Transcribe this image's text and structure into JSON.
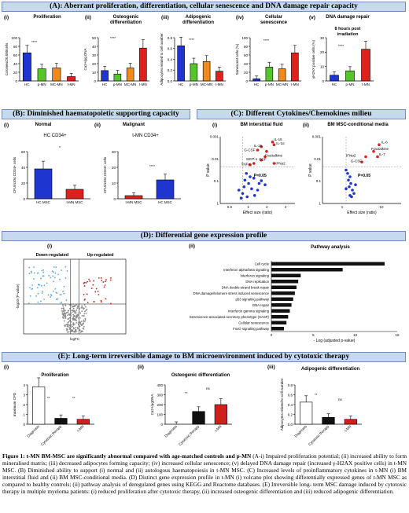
{
  "sections": {
    "A": "(A): Aberrant proliferation, differentiation, cellular senescence and DNA damage repair capacity",
    "B": "(B):  Diminished haematopoietic supporting capacity",
    "C": "(C): Different Cytokines/Chemokines milieu",
    "D": "(D): Differential gene expression profile",
    "E": "(E):  Long-term irreversible damage to BM  microenvironment induced by cytotoxic therapy"
  },
  "panelA": {
    "labels": [
      "(i)",
      "(ii)",
      "(iii)",
      "(iv)",
      "(v)"
    ],
    "titles": [
      "Proliferation",
      "Osteogenic differentiation",
      "Adipogenic differentiation",
      "Cellular senescence",
      "DNA damage repair"
    ],
    "subtitle_v": "8 hours post irradiation",
    "ylabels": [
      "Colonies/20,000cells",
      "Ca2+/μg DNA",
      "Adipocytes related to cell number",
      "Senescent cells (%)",
      "γH2AX positive cells (%)"
    ]
  },
  "panelB": {
    "labels": [
      "(i)",
      "(ii)"
    ],
    "titles": [
      "Normal",
      "Malignant"
    ],
    "legends": [
      "HC CD34+",
      "t-MN CD34+"
    ],
    "ylabel": "CFU/n104 CD34+ cells",
    "xlabels_i": [
      "HC MSC",
      "t-MN MSC"
    ],
    "xlabels_ii": [
      "t-MN MSC",
      "HC MSC"
    ]
  },
  "panelC": {
    "labels": [
      "(i)",
      "(ii)"
    ],
    "titles": [
      "BM interstitial fluid",
      "BM MSC-conditional media"
    ],
    "xlabel": "Effect size (ratio)",
    "ylabel": "P value",
    "pline": "P=0.05",
    "annot_i": [
      "IL-15",
      "IL-1α",
      "IL-15",
      "G-CSF",
      "Fractalkine",
      "MCP-1",
      "EGF",
      "IFNα2",
      "TNFα"
    ],
    "annot_ii": [
      "IL-6",
      "Fractalkine",
      "IFNα2",
      "IL-7",
      "G-CSF"
    ],
    "ticks_y_i": [
      "0.001",
      "0.01",
      "0.1",
      "1"
    ],
    "ticks_x_i": [
      "0.5",
      "1",
      "2",
      "4"
    ],
    "ticks_y_ii": [
      "0.001",
      "0.01",
      "0.1",
      "1"
    ],
    "ticks_x_ii": [
      "1",
      "10"
    ]
  },
  "panelD": {
    "labels": [
      "(i)",
      "(ii)"
    ],
    "volcano": {
      "down": "Down-regulated",
      "up": "Up-regulated",
      "xlabel": "logFC",
      "ylabel": "-log10 (P-value)"
    },
    "pathway_title": "Pathway analysis",
    "pathway_xlabel": "- Log (adjusted p-value)",
    "pathway_ticks": [
      "0",
      "5",
      "10",
      "15"
    ]
  },
  "panelE": {
    "labels": [
      "(i)",
      "(ii)",
      "(iii)"
    ],
    "titles": [
      "Proliferation",
      "Osteogenic differentiation",
      "Adipogenic differentiation"
    ],
    "ylabels": [
      "maximum CPD",
      "Ca2+/μgDNA",
      "Adipocytes related to cell number"
    ],
    "categories": [
      "Diagnosis",
      "Cytotoxic therapy",
      "t-MN"
    ]
  },
  "chart_data": [
    {
      "type": "bar",
      "categories": [
        "HC",
        "p-MN",
        "MC-MN",
        "t-MN"
      ],
      "values": [
        65,
        28,
        30,
        10
      ],
      "ylim": [
        0,
        100
      ],
      "ticks": [
        "0",
        "20",
        "40",
        "60",
        "80",
        "100"
      ],
      "colors": [
        "#1f35d0",
        "#55c52a",
        "#f08a1c",
        "#e0201c"
      ]
    },
    {
      "type": "bar",
      "categories": [
        "HC",
        "p-MN",
        "MC-MN",
        "t-MN"
      ],
      "values": [
        12,
        8,
        15,
        38
      ],
      "ylim": [
        0,
        50
      ],
      "ticks": [
        "0",
        "10",
        "20",
        "30",
        "40",
        "50"
      ],
      "colors": [
        "#1f35d0",
        "#55c52a",
        "#f08a1c",
        "#e0201c"
      ]
    },
    {
      "type": "bar",
      "categories": [
        "HC",
        "p-MN",
        "MC-MN",
        "t-MN"
      ],
      "values": [
        0.65,
        0.32,
        0.36,
        0.18
      ],
      "ylim": [
        0,
        0.8
      ],
      "ticks": [
        "0.0",
        "0.2",
        "0.4",
        "0.6",
        "0.8"
      ],
      "colors": [
        "#1f35d0",
        "#55c52a",
        "#f08a1c",
        "#e0201c"
      ]
    },
    {
      "type": "bar",
      "categories": [
        "HC",
        "p-MN",
        "MC-MN",
        "t-MN"
      ],
      "values": [
        5,
        32,
        28,
        65
      ],
      "ylim": [
        0,
        100
      ],
      "ticks": [
        "0",
        "20",
        "40",
        "60",
        "80",
        "100"
      ],
      "colors": [
        "#1f35d0",
        "#55c52a",
        "#f08a1c",
        "#e0201c"
      ]
    },
    {
      "type": "bar",
      "categories": [
        "HC",
        "p-MN",
        "t-MN"
      ],
      "values": [
        4,
        7,
        22
      ],
      "ylim": [
        0,
        30
      ],
      "ticks": [
        "0",
        "10",
        "20",
        "30"
      ],
      "colors": [
        "#1f35d0",
        "#55c52a",
        "#e0201c"
      ]
    },
    {
      "type": "bar",
      "categories": [
        "HC MSC",
        "t-MN MSC"
      ],
      "values": [
        38,
        12
      ],
      "ylim": [
        0,
        60
      ],
      "ticks": [
        "0",
        "20",
        "40",
        "60"
      ],
      "colors": [
        "#1f35d0",
        "#e0201c"
      ]
    },
    {
      "type": "bar",
      "categories": [
        "t-MN MSC",
        "HC MSC"
      ],
      "values": [
        2,
        12
      ],
      "ylim": [
        0,
        30
      ],
      "ticks": [
        "0",
        "10",
        "20",
        "30"
      ],
      "colors": [
        "#e0201c",
        "#1f35d0"
      ]
    },
    {
      "type": "bar",
      "title": "Pathway analysis",
      "categories": [
        "Cell cycle",
        "Interferon alpha/beta signaling",
        "Interferon signaling",
        "DNA replication",
        "DNA double-strand break repair",
        "DNA damage/telomere stress induced senescence",
        "p53 signaling pathway",
        "DNA repair",
        "Interferon gamma signaling",
        "Senescence-associated secretory phenotype (SASP)",
        "Cellular senescence",
        "FoxO signaling pathway"
      ],
      "values": [
        13.5,
        8.5,
        3.5,
        3.2,
        3.0,
        2.8,
        2.6,
        2.4,
        2.2,
        2.0,
        1.8,
        1.5
      ],
      "xlim": [
        0,
        15
      ]
    },
    {
      "type": "bar",
      "categories": [
        "Diagnosis",
        "Cytotoxic therapy",
        "t-MN"
      ],
      "values": [
        3.8,
        0.6,
        0.5
      ],
      "ylim": [
        0,
        4
      ],
      "ticks": [
        "0",
        "1",
        "2",
        "3",
        "4"
      ],
      "colors": [
        "#ffffff",
        "#111111",
        "#d0201c"
      ]
    },
    {
      "type": "bar",
      "categories": [
        "Diagnosis",
        "Cytotoxic therapy",
        "t-MN"
      ],
      "values": [
        0,
        130,
        200
      ],
      "ylim": [
        0,
        400
      ],
      "ticks": [
        "0",
        "100",
        "200",
        "300",
        "400"
      ],
      "colors": [
        "#ffffff",
        "#111111",
        "#d0201c"
      ]
    },
    {
      "type": "bar",
      "categories": [
        "Diagnosis",
        "Cytotoxic therapy",
        "t-MN"
      ],
      "values": [
        0.45,
        0.14,
        0.1
      ],
      "ylim": [
        0,
        0.8
      ],
      "ticks": [
        "0.0",
        "0.2",
        "0.4",
        "0.6",
        "0.8"
      ],
      "colors": [
        "#ffffff",
        "#111111",
        "#d0201c"
      ]
    }
  ],
  "caption": {
    "bold": "Figure 1: t-MN BM-MSC are significantly abnormal compared with age-matched controls and p-MN",
    "text": " (A-i) Impaired proliferation potential; (ii) increased ability to form mineralised matrix; (iii) decreased adipocytes forming capacity; (iv) increased cellular senescence; (v) delayed DNA damage repair (increased γ-H2AX positive cells) in t-MN MSC. (B) Diminished ability to support (i) normal and (ii) autologous haematopoiesis in t-MN MSC. (C) Increased levels of proinflammatory cytokines in t-MN (i) BM interstitial fluid and (ii) BM MSC-conditional media. (D) Distinct gene expression profile in t-MN (i) volcano plot showing differentially expressed genes of t-MN MSC as compared to healthy controls; (ii) pathway analysis of deregulated genes using KEGG and Reactome databases. (E) Irreversible long- term MSC damage induced by cytotoxic therapy in multiple myeloma patients: (i) reduced proliferation after cytotoxic therapy, (ii) increased osteogenic differentiation and (iii) reduced adipogenic differentiation."
  }
}
